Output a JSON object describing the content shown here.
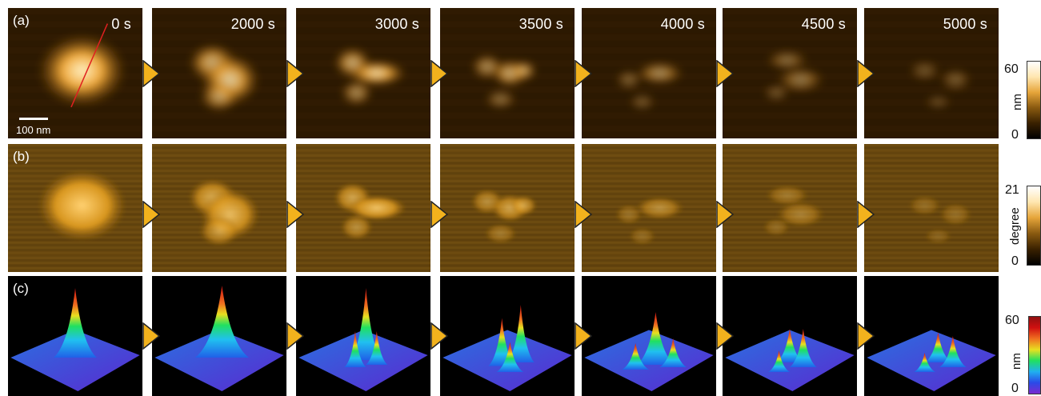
{
  "rows": [
    {
      "label": "(a)"
    },
    {
      "label": "(b)"
    },
    {
      "label": "(c)"
    }
  ],
  "times": [
    "0 s",
    "2000 s",
    "3000 s",
    "3500 s",
    "4000 s",
    "4500 s",
    "5000 s"
  ],
  "scale_bar": {
    "label": "100 nm"
  },
  "colorbars": [
    {
      "max": "60",
      "min": "0",
      "unit": "nm"
    },
    {
      "max": "21",
      "min": "0",
      "unit": "degree"
    },
    {
      "max": "60",
      "min": "0",
      "unit": "nm"
    }
  ],
  "colors": {
    "height_gold": "#e8a531",
    "phase_gold": "#c8961e",
    "arrow": "#f2b21d",
    "profile_line": "#e02020"
  }
}
